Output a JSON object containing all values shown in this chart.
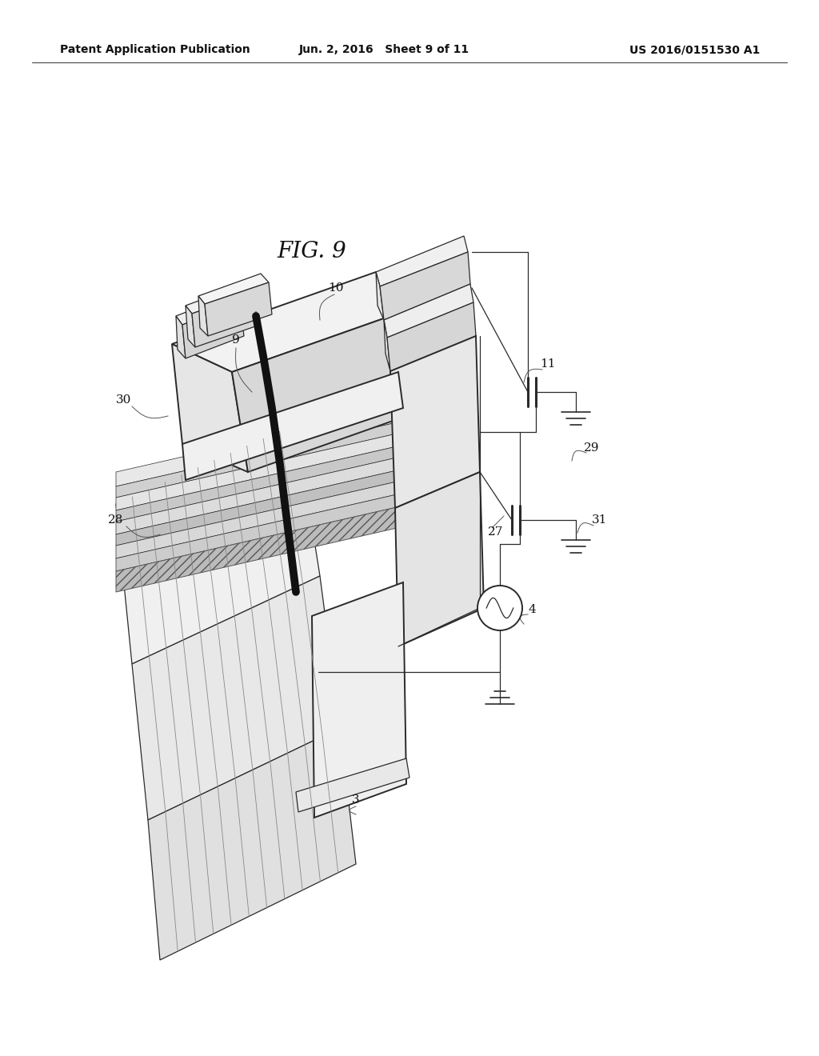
{
  "bg_color": "#ffffff",
  "fig_title": "FIG. 9",
  "header_left": "Patent Application Publication",
  "header_center": "Jun. 2, 2016   Sheet 9 of 11",
  "header_right": "US 2016/0151530 A1",
  "line_color": "#2a2a2a",
  "thick_cable_color": "#111111",
  "label_fs": 11,
  "header_fs": 10,
  "title_fs": 20
}
